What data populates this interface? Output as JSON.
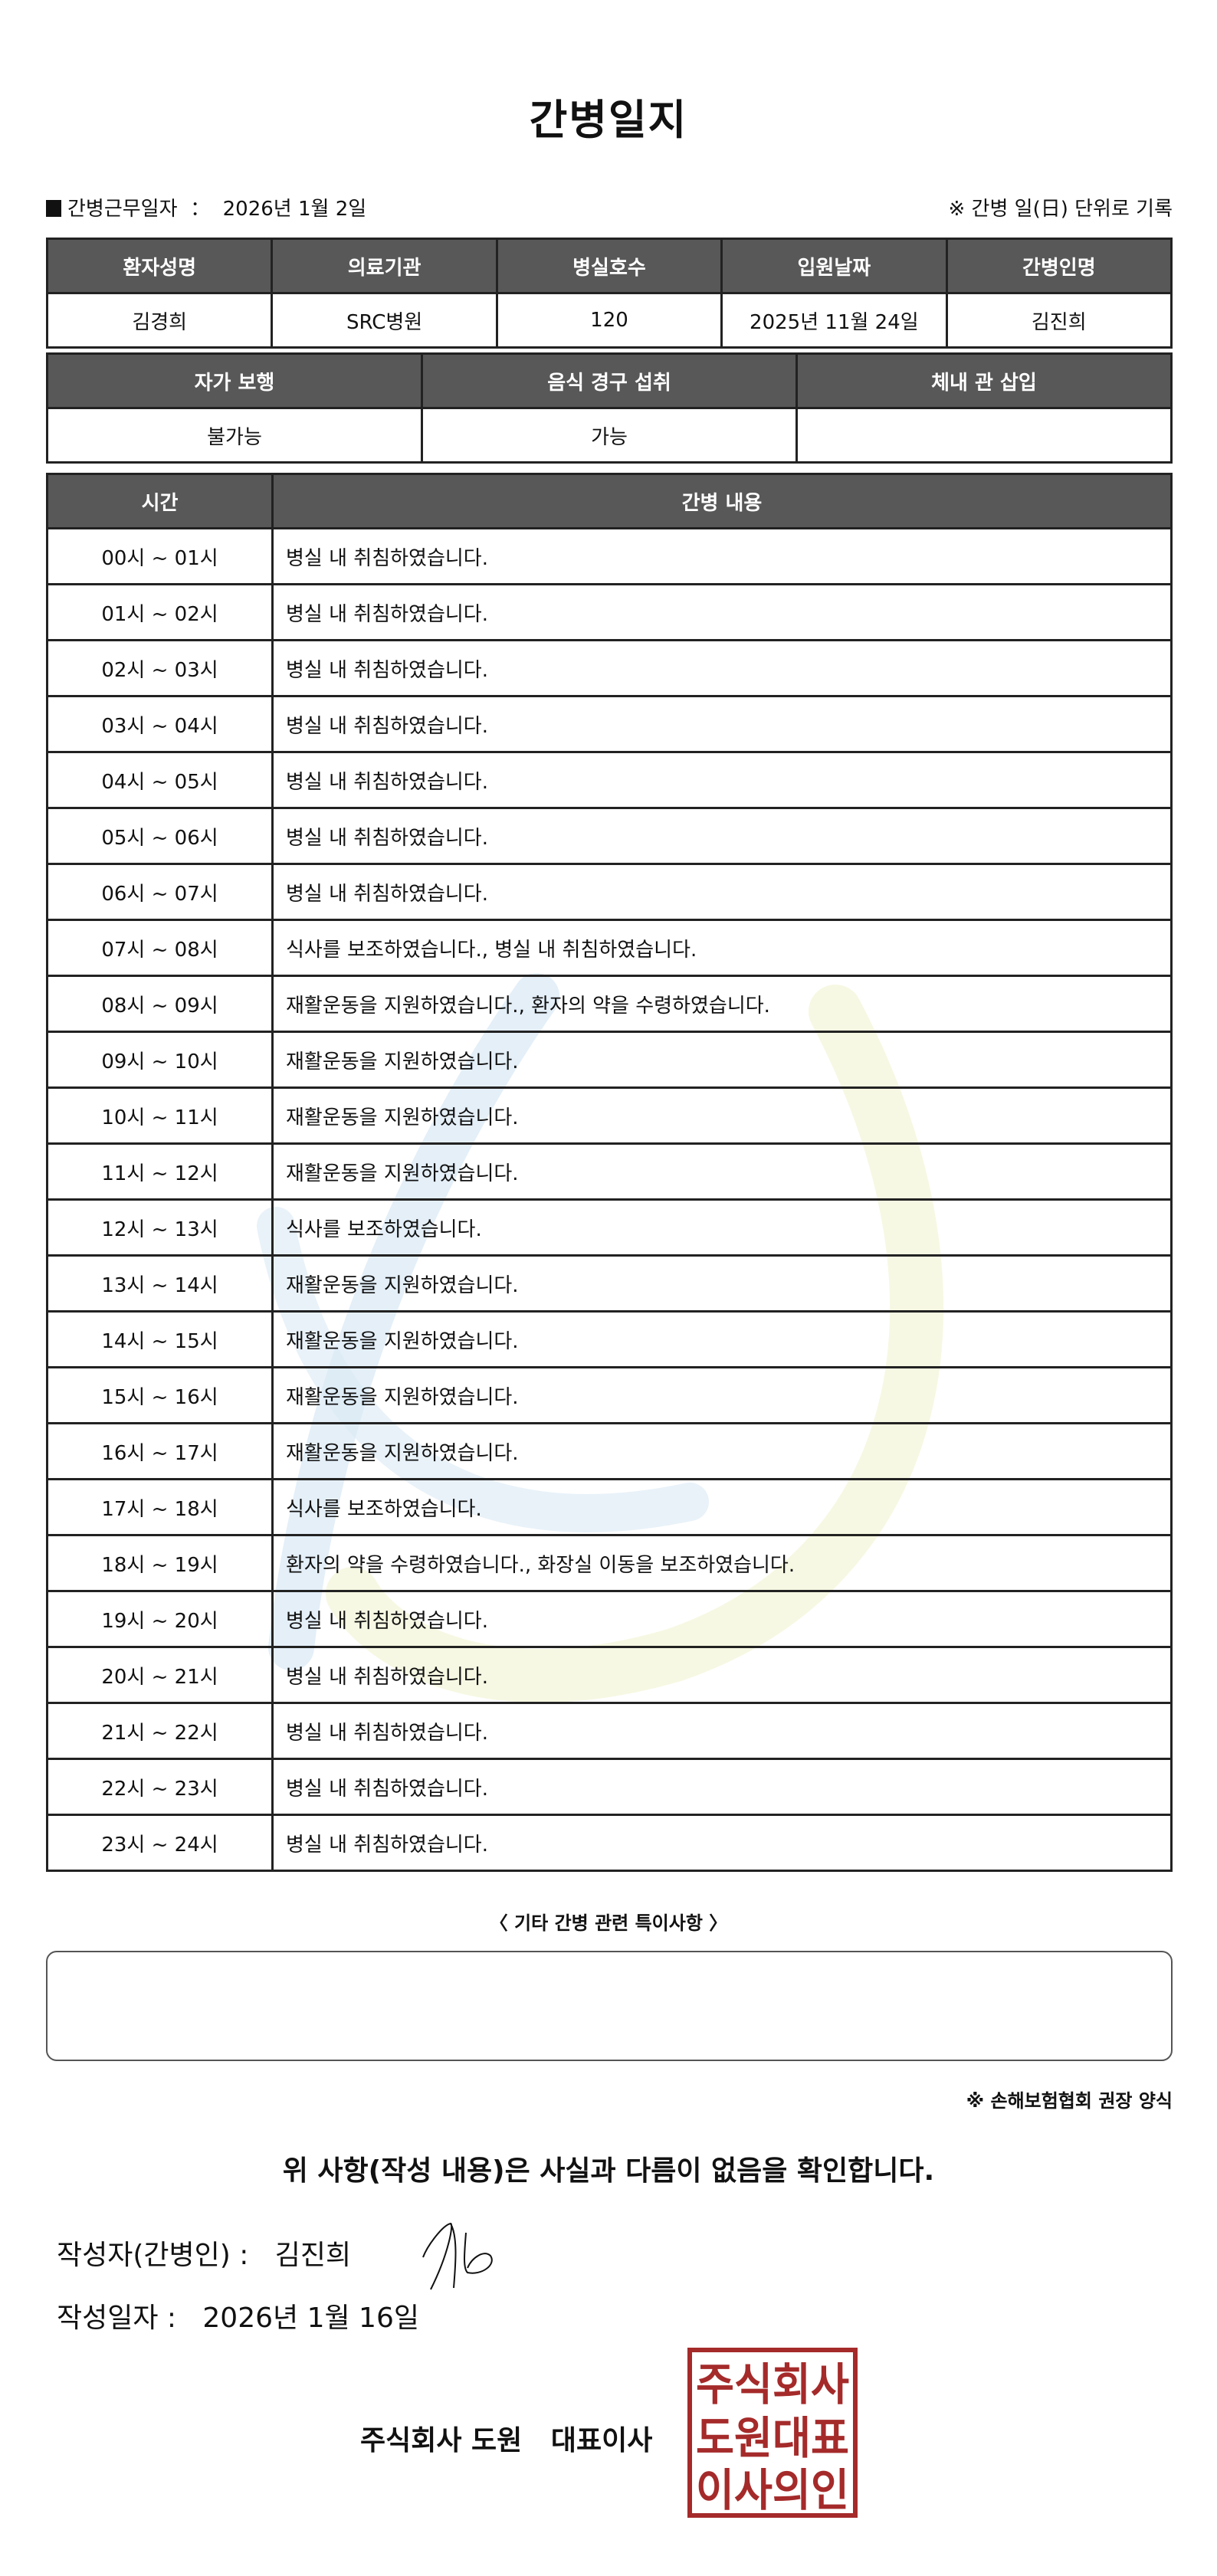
{
  "title": "간병일지",
  "work_date_label": "간병근무일자",
  "work_date_sep": "：",
  "work_date": "2026년 1월 2일",
  "record_note": "※ 간병 일(日) 단위로 기록",
  "patient_table": {
    "headers": [
      "환자성명",
      "의료기관",
      "병실호수",
      "입원날짜",
      "간병인명"
    ],
    "values": [
      "김경희",
      "SRC병원",
      "120",
      "2025년 11월 24일",
      "김진희"
    ]
  },
  "status_table": {
    "headers": [
      "자가 보행",
      "음식 경구 섭취",
      "체내 관 삽입"
    ],
    "values": [
      "불가능",
      "가능",
      ""
    ]
  },
  "log_table": {
    "headers": [
      "시간",
      "간병 내용"
    ],
    "rows": [
      {
        "time": "00시 ~ 01시",
        "content": "병실 내 취침하였습니다."
      },
      {
        "time": "01시 ~ 02시",
        "content": "병실 내 취침하였습니다."
      },
      {
        "time": "02시 ~ 03시",
        "content": "병실 내 취침하였습니다."
      },
      {
        "time": "03시 ~ 04시",
        "content": "병실 내 취침하였습니다."
      },
      {
        "time": "04시 ~ 05시",
        "content": "병실 내 취침하였습니다."
      },
      {
        "time": "05시 ~ 06시",
        "content": "병실 내 취침하였습니다."
      },
      {
        "time": "06시 ~ 07시",
        "content": "병실 내 취침하였습니다."
      },
      {
        "time": "07시 ~ 08시",
        "content": "식사를 보조하였습니다., 병실 내 취침하였습니다."
      },
      {
        "time": "08시 ~ 09시",
        "content": "재활운동을 지원하였습니다., 환자의 약을 수령하였습니다."
      },
      {
        "time": "09시 ~ 10시",
        "content": "재활운동을 지원하였습니다."
      },
      {
        "time": "10시 ~ 11시",
        "content": "재활운동을 지원하였습니다."
      },
      {
        "time": "11시 ~ 12시",
        "content": "재활운동을 지원하였습니다."
      },
      {
        "time": "12시 ~ 13시",
        "content": "식사를 보조하였습니다."
      },
      {
        "time": "13시 ~ 14시",
        "content": "재활운동을 지원하였습니다."
      },
      {
        "time": "14시 ~ 15시",
        "content": "재활운동을 지원하였습니다."
      },
      {
        "time": "15시 ~ 16시",
        "content": "재활운동을 지원하였습니다."
      },
      {
        "time": "16시 ~ 17시",
        "content": "재활운동을 지원하였습니다."
      },
      {
        "time": "17시 ~ 18시",
        "content": "식사를 보조하였습니다."
      },
      {
        "time": "18시 ~ 19시",
        "content": "환자의 약을 수령하였습니다., 화장실 이동을 보조하였습니다."
      },
      {
        "time": "19시 ~ 20시",
        "content": "병실 내 취침하였습니다."
      },
      {
        "time": "20시 ~ 21시",
        "content": "병실 내 취침하였습니다."
      },
      {
        "time": "21시 ~ 22시",
        "content": "병실 내 취침하였습니다."
      },
      {
        "time": "22시 ~ 23시",
        "content": "병실 내 취침하였습니다."
      },
      {
        "time": "23시 ~ 24시",
        "content": "병실 내 취침하였습니다."
      }
    ]
  },
  "notes": {
    "title": "〈 기타 간병 관련 특이사항 〉",
    "value": ""
  },
  "association_note": "※ 손해보험협회 권장 양식",
  "confirmation": "위 사항(작성 내용)은 사실과 다름이 없음을 확인합니다.",
  "author_label": "작성자(간병인) :",
  "author_name": "김진희",
  "written_date_label": "작성일자 :",
  "written_date": "2026년 1월 16일",
  "company": "주식회사 도원   대표이사",
  "stamp": {
    "text": [
      "주식회사",
      "도원대표",
      "이사의인"
    ],
    "color": "#a52a2a"
  },
  "watermark_colors": {
    "blue": "#dbe9f5",
    "yellow": "#f6f7de"
  }
}
